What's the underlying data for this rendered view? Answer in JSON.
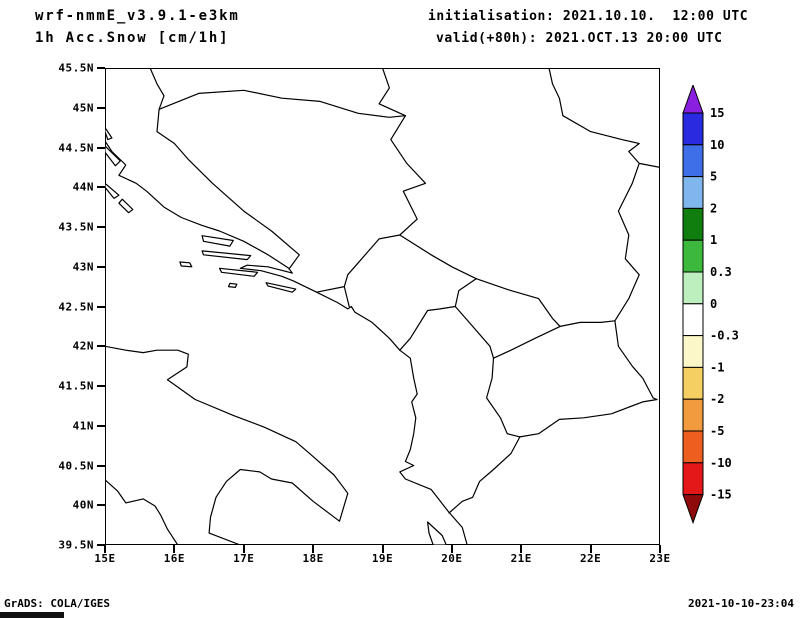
{
  "header": {
    "model_title": "wrf-nmmE_v3.9.1-e3km",
    "field_title": "1h Acc.Snow [cm/1h]",
    "init_line": "initialisation: 2021.10.10.  12:00 UTC",
    "valid_line": "valid(+80h): 2021.OCT.13 20:00 UTC"
  },
  "axes": {
    "y_tick_labels": [
      "45.5N",
      "45N",
      "44.5N",
      "44N",
      "43.5N",
      "43N",
      "42.5N",
      "42N",
      "41.5N",
      "41N",
      "40.5N",
      "40N",
      "39.5N"
    ],
    "x_tick_labels": [
      "15E",
      "16E",
      "17E",
      "18E",
      "19E",
      "20E",
      "21E",
      "22E",
      "23E"
    ]
  },
  "colorbar": {
    "tick_labels": [
      "15",
      "10",
      "5",
      "2",
      "1",
      "0.3",
      "0",
      "-0.3",
      "-1",
      "-2",
      "-5",
      "-10",
      "-15"
    ],
    "segment_colors": [
      "#2a2ae0",
      "#3f6fe8",
      "#7fb6ee",
      "#0f7e0f",
      "#3cb93c",
      "#bdeebd",
      "#ffffff",
      "#fbf7c8",
      "#f6cf63",
      "#f29b3e",
      "#ee5f1f",
      "#e41719"
    ],
    "top_arrow_color": "#8a1fe0",
    "bottom_arrow_color": "#8f0b0b"
  },
  "footer": {
    "credit": "GrADS: COLA/IGES",
    "timestamp": "2021-10-10-23:04"
  }
}
